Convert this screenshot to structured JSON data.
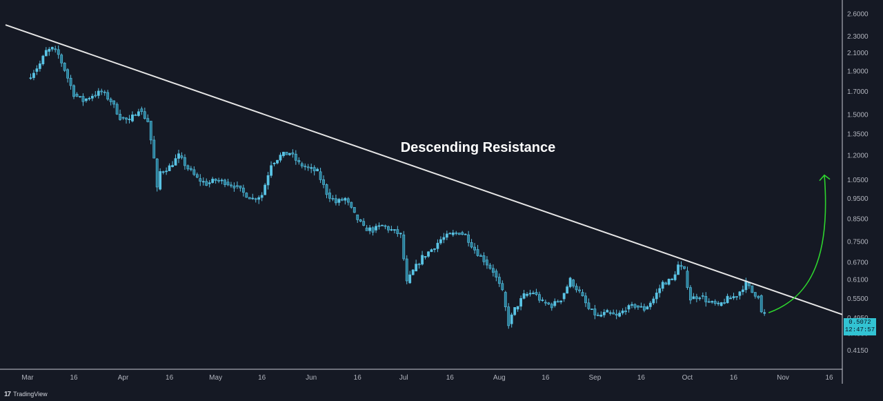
{
  "chart_data": {
    "type": "candlestick",
    "annotation": "Descending Resistance",
    "y_axis": {
      "scale": "log",
      "range": [
        0.395,
        2.8
      ],
      "ticks": [
        "2.6000",
        "2.3000",
        "2.1000",
        "1.9000",
        "1.7000",
        "1.5000",
        "1.3500",
        "1.2000",
        "1.0500",
        "0.9500",
        "0.8500",
        "0.7500",
        "0.6700",
        "0.6100",
        "0.5500",
        "0.4950",
        "0.4550",
        "0.4150"
      ]
    },
    "x_axis": {
      "ticks": [
        "Mar",
        "16",
        "Apr",
        "16",
        "May",
        "16",
        "Jun",
        "16",
        "Jul",
        "16",
        "Aug",
        "16",
        "Sep",
        "16",
        "Oct",
        "16",
        "Nov",
        "16"
      ]
    },
    "current_price": "0.5072",
    "countdown": "12:47:57",
    "colors": {
      "background": "#151924",
      "candle": "#59c3e4",
      "trendline": "#e6e6e6",
      "arrow": "#2ed52e",
      "badge": "#32c3d3"
    },
    "trendline": {
      "start_price": 2.45,
      "end_price": 0.505
    },
    "forecast_arrow": {
      "from_price": 0.51,
      "to_price": 1.08
    },
    "series": [
      {
        "date": "Mar 1",
        "c": 1.83
      },
      {
        "date": "Mar 3",
        "c": 1.9
      },
      {
        "date": "Mar 5",
        "c": 1.98
      },
      {
        "date": "Mar 7",
        "c": 2.12
      },
      {
        "date": "Mar 9",
        "c": 2.15
      },
      {
        "date": "Mar 11",
        "c": 2.08
      },
      {
        "date": "Mar 13",
        "c": 1.92
      },
      {
        "date": "Mar 16",
        "c": 1.68
      },
      {
        "date": "Mar 19",
        "c": 1.62
      },
      {
        "date": "Mar 22",
        "c": 1.67
      },
      {
        "date": "Mar 25",
        "c": 1.7
      },
      {
        "date": "Mar 28",
        "c": 1.62
      },
      {
        "date": "Mar 31",
        "c": 1.48
      },
      {
        "date": "Apr 3",
        "c": 1.45
      },
      {
        "date": "Apr 6",
        "c": 1.55
      },
      {
        "date": "Apr 9",
        "c": 1.45
      },
      {
        "date": "Apr 11",
        "c": 1.18
      },
      {
        "date": "Apr 12",
        "c": 1.0
      },
      {
        "date": "Apr 13",
        "c": 1.1
      },
      {
        "date": "Apr 16",
        "c": 1.13
      },
      {
        "date": "Apr 19",
        "c": 1.2
      },
      {
        "date": "Apr 22",
        "c": 1.12
      },
      {
        "date": "Apr 25",
        "c": 1.06
      },
      {
        "date": "Apr 28",
        "c": 1.03
      },
      {
        "date": "May 1",
        "c": 1.05
      },
      {
        "date": "May 4",
        "c": 1.04
      },
      {
        "date": "May 7",
        "c": 1.02
      },
      {
        "date": "May 10",
        "c": 0.98
      },
      {
        "date": "May 13",
        "c": 0.95
      },
      {
        "date": "May 16",
        "c": 0.97
      },
      {
        "date": "May 19",
        "c": 1.15
      },
      {
        "date": "May 22",
        "c": 1.2
      },
      {
        "date": "May 25",
        "c": 1.22
      },
      {
        "date": "May 28",
        "c": 1.15
      },
      {
        "date": "May 31",
        "c": 1.12
      },
      {
        "date": "Jun 3",
        "c": 1.1
      },
      {
        "date": "Jun 6",
        "c": 0.98
      },
      {
        "date": "Jun 9",
        "c": 0.93
      },
      {
        "date": "Jun 12",
        "c": 0.95
      },
      {
        "date": "Jun 15",
        "c": 0.87
      },
      {
        "date": "Jun 18",
        "c": 0.81
      },
      {
        "date": "Jun 21",
        "c": 0.8
      },
      {
        "date": "Jun 24",
        "c": 0.82
      },
      {
        "date": "Jun 27",
        "c": 0.8
      },
      {
        "date": "Jun 30",
        "c": 0.78
      },
      {
        "date": "Jul 2",
        "c": 0.6
      },
      {
        "date": "Jul 4",
        "c": 0.64
      },
      {
        "date": "Jul 7",
        "c": 0.69
      },
      {
        "date": "Jul 10",
        "c": 0.72
      },
      {
        "date": "Jul 13",
        "c": 0.76
      },
      {
        "date": "Jul 16",
        "c": 0.78
      },
      {
        "date": "Jul 19",
        "c": 0.79
      },
      {
        "date": "Jul 21",
        "c": 0.78
      },
      {
        "date": "Jul 24",
        "c": 0.72
      },
      {
        "date": "Jul 27",
        "c": 0.68
      },
      {
        "date": "Jul 30",
        "c": 0.64
      },
      {
        "date": "Aug 2",
        "c": 0.57
      },
      {
        "date": "Aug 4",
        "c": 0.48
      },
      {
        "date": "Aug 6",
        "c": 0.52
      },
      {
        "date": "Aug 9",
        "c": 0.56
      },
      {
        "date": "Aug 12",
        "c": 0.57
      },
      {
        "date": "Aug 15",
        "c": 0.54
      },
      {
        "date": "Aug 18",
        "c": 0.53
      },
      {
        "date": "Aug 21",
        "c": 0.55
      },
      {
        "date": "Aug 24",
        "c": 0.61
      },
      {
        "date": "Aug 27",
        "c": 0.57
      },
      {
        "date": "Aug 30",
        "c": 0.52
      },
      {
        "date": "Sep 2",
        "c": 0.5
      },
      {
        "date": "Sep 5",
        "c": 0.51
      },
      {
        "date": "Sep 8",
        "c": 0.5
      },
      {
        "date": "Sep 11",
        "c": 0.52
      },
      {
        "date": "Sep 14",
        "c": 0.53
      },
      {
        "date": "Sep 17",
        "c": 0.52
      },
      {
        "date": "Sep 20",
        "c": 0.55
      },
      {
        "date": "Sep 23",
        "c": 0.6
      },
      {
        "date": "Sep 26",
        "c": 0.61
      },
      {
        "date": "Sep 28",
        "c": 0.66
      },
      {
        "date": "Sep 30",
        "c": 0.64
      },
      {
        "date": "Oct 2",
        "c": 0.55
      },
      {
        "date": "Oct 5",
        "c": 0.56
      },
      {
        "date": "Oct 8",
        "c": 0.54
      },
      {
        "date": "Oct 11",
        "c": 0.53
      },
      {
        "date": "Oct 14",
        "c": 0.55
      },
      {
        "date": "Oct 17",
        "c": 0.56
      },
      {
        "date": "Oct 20",
        "c": 0.6
      },
      {
        "date": "Oct 22",
        "c": 0.57
      },
      {
        "date": "Oct 24",
        "c": 0.56
      },
      {
        "date": "Oct 25",
        "c": 0.51
      },
      {
        "date": "Oct 26",
        "c": 0.5072
      }
    ]
  },
  "branding": {
    "logo_text": "TradingView"
  }
}
